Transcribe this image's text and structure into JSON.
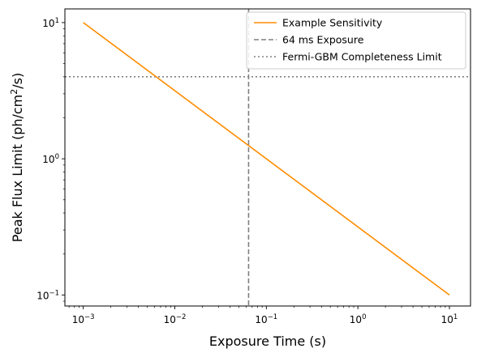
{
  "chart_data": {
    "type": "line",
    "xscale": "log",
    "yscale": "log",
    "xlim": [
      0.00063,
      17
    ],
    "ylim": [
      0.083,
      12.6
    ],
    "xlabel": "Exposure Time (s)",
    "ylabel": "Peak Flux Limit (ph/cm²/s)",
    "ylabel_parts": {
      "before": "Peak Flux Limit (ph/cm",
      "superscript": "2",
      "after": "/s)"
    },
    "x_ticks": [
      {
        "value": 0.001,
        "base": "10",
        "exp": "−3"
      },
      {
        "value": 0.01,
        "base": "10",
        "exp": "−2"
      },
      {
        "value": 0.1,
        "base": "10",
        "exp": "−1"
      },
      {
        "value": 1,
        "base": "10",
        "exp": "0"
      },
      {
        "value": 10,
        "base": "10",
        "exp": "1"
      }
    ],
    "y_ticks": [
      {
        "value": 0.1,
        "base": "10",
        "exp": "−1"
      },
      {
        "value": 1,
        "base": "10",
        "exp": "0"
      },
      {
        "value": 10,
        "base": "10",
        "exp": "1"
      }
    ],
    "series": [
      {
        "name": "Example Sensitivity",
        "style": "solid",
        "color": "#ff8c00",
        "x": [
          0.001,
          10
        ],
        "y": [
          10,
          0.1
        ]
      }
    ],
    "reference_lines": [
      {
        "name": "64 ms Exposure",
        "orientation": "vertical",
        "value": 0.064,
        "style": "dashed",
        "color": "#808080"
      },
      {
        "name": "Fermi-GBM Completeness Limit",
        "orientation": "horizontal",
        "value": 4,
        "style": "dotted",
        "color": "#808080"
      }
    ],
    "legend": {
      "placement": "upper right",
      "entries": [
        "Example Sensitivity",
        "64 ms Exposure",
        "Fermi-GBM Completeness Limit"
      ]
    },
    "grid": false
  }
}
